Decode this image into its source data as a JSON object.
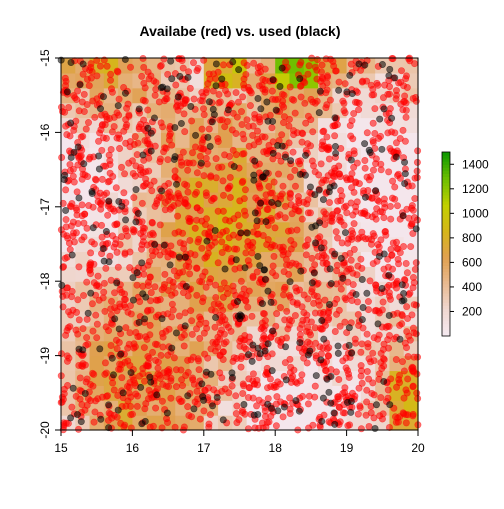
{
  "chart_data": {
    "type": "scatter",
    "title": "Availabe (red) vs. used (black)",
    "xlabel": "",
    "ylabel": "",
    "xlim": [
      15,
      20
    ],
    "ylim": [
      -20,
      -15
    ],
    "x_ticks": [
      "15",
      "16",
      "17",
      "18",
      "19",
      "20"
    ],
    "y_ticks": [
      "-20",
      "-19",
      "-18",
      "-17",
      "-16",
      "-15"
    ],
    "grid": false,
    "background_raster": {
      "description_source": "elevation-like raster shown behind points",
      "xlim": [
        15,
        20
      ],
      "ylim": [
        -20,
        -15
      ],
      "nx": 25,
      "ny": 25,
      "value_range": [
        0,
        1500
      ]
    },
    "colorbar": {
      "ticks": [
        "200",
        "400",
        "600",
        "800",
        "1000",
        "1200",
        "1400"
      ],
      "range": [
        0,
        1500
      ],
      "colors": [
        "#f5e9f0",
        "#efd7d0",
        "#e8b98f",
        "#e0a04f",
        "#d6b61a",
        "#c2d000",
        "#6fbf00",
        "#119900"
      ]
    },
    "series": [
      {
        "color": "#ff0000",
        "count": 2200,
        "values_note": "random available locations across the whole extent"
      },
      {
        "color": "#000000",
        "count": 300,
        "values_note": "used locations, scattered across extent"
      }
    ]
  }
}
